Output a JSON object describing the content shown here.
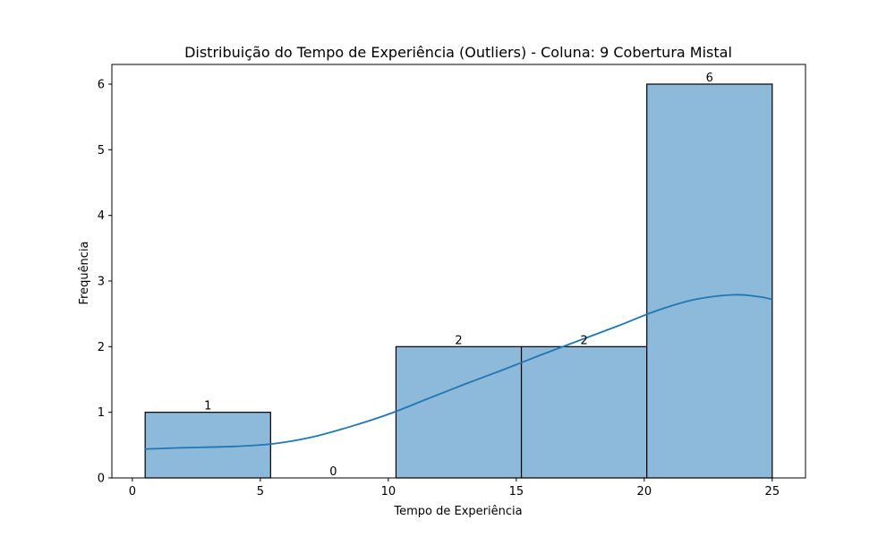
{
  "chart_data": {
    "type": "bar",
    "title": "Distribuição do Tempo de Experiência (Outliers) - Coluna: 9 Cobertura Mistal",
    "xlabel": "Tempo de Experiência",
    "ylabel": "Frequência",
    "xlim": [
      -0.8,
      26.3
    ],
    "ylim": [
      0,
      6.3
    ],
    "x_ticks": [
      0,
      5,
      10,
      15,
      20,
      25
    ],
    "y_ticks": [
      0,
      1,
      2,
      3,
      4,
      5,
      6
    ],
    "bins": [
      {
        "start": 0.5,
        "end": 5.4,
        "count": 1,
        "label": "1"
      },
      {
        "start": 5.4,
        "end": 10.3,
        "count": 0,
        "label": "0"
      },
      {
        "start": 10.3,
        "end": 15.2,
        "count": 2,
        "label": "2"
      },
      {
        "start": 15.2,
        "end": 20.1,
        "count": 2,
        "label": "2"
      },
      {
        "start": 20.1,
        "end": 25.0,
        "count": 6,
        "label": "6"
      }
    ],
    "kde": {
      "x": [
        0.5,
        2.0,
        4.0,
        5.5,
        7.0,
        8.5,
        10.0,
        11.5,
        13.0,
        14.5,
        16.0,
        17.5,
        19.0,
        20.5,
        22.0,
        23.5,
        24.5,
        25.0
      ],
      "y": [
        0.44,
        0.46,
        0.48,
        0.52,
        0.62,
        0.78,
        0.97,
        1.2,
        1.43,
        1.65,
        1.88,
        2.1,
        2.32,
        2.55,
        2.72,
        2.79,
        2.76,
        2.72
      ]
    },
    "colors": {
      "bar_fill": "#8db9da",
      "bar_edge": "#000000",
      "kde_line": "#1f77b4"
    },
    "grid": false,
    "legend": "none"
  }
}
